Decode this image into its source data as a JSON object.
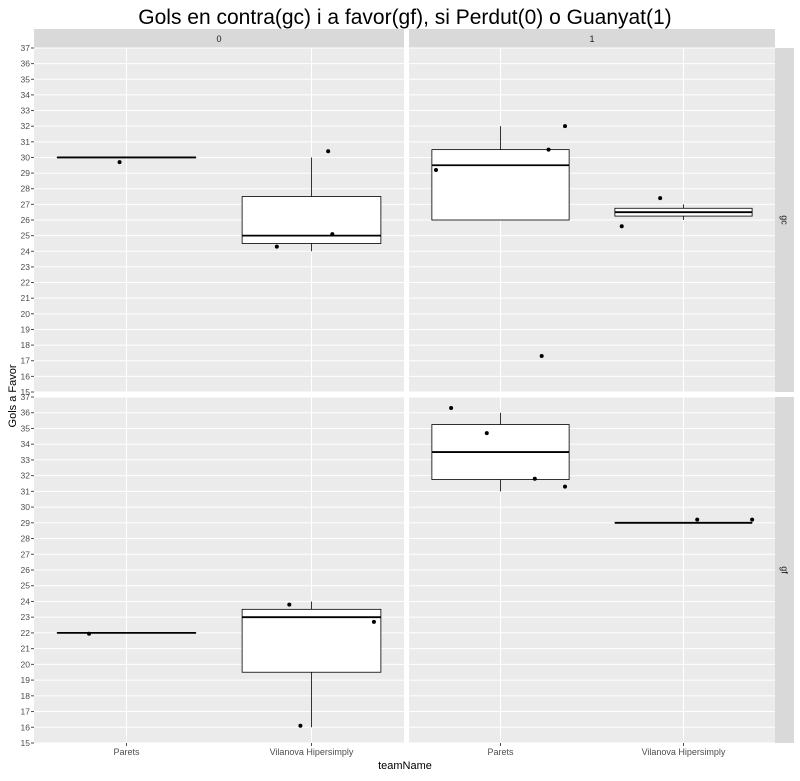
{
  "chart_data": {
    "type": "boxplot",
    "title": "Gols en contra(gc) i a favor(gf), si Perdut(0) o Guanyat(1)",
    "xlabel": "teamName",
    "ylabel": "Gols a Favor",
    "categories": [
      "Parets",
      "Vilanova Hipersimply"
    ],
    "facet_cols": [
      "0",
      "1"
    ],
    "facet_rows": [
      "gc",
      "gf"
    ],
    "panels": [
      {
        "col": "0",
        "row": "gc",
        "ylim": [
          15,
          37
        ],
        "boxes": [
          {
            "category": "Parets",
            "min": 30,
            "q1": 30,
            "median": 30,
            "q3": 30,
            "max": 30
          },
          {
            "category": "Vilanova Hipersimply",
            "min": 24,
            "q1": 24.5,
            "median": 25,
            "q3": 27.5,
            "max": 30
          }
        ],
        "points": [
          {
            "category": "Parets",
            "y": 29.7,
            "jitter": -0.05
          },
          {
            "category": "Vilanova Hipersimply",
            "y": 24.3,
            "jitter": -0.25
          },
          {
            "category": "Vilanova Hipersimply",
            "y": 25.1,
            "jitter": 0.15
          },
          {
            "category": "Vilanova Hipersimply",
            "y": 30.4,
            "jitter": 0.12
          }
        ]
      },
      {
        "col": "1",
        "row": "gc",
        "ylim": [
          15,
          37
        ],
        "boxes": [
          {
            "category": "Parets",
            "min": 26,
            "q1": 26,
            "median": 29.5,
            "q3": 30.5,
            "max": 32
          },
          {
            "category": "Vilanova Hipersimply",
            "min": 26,
            "q1": 26.25,
            "median": 26.5,
            "q3": 26.75,
            "max": 27
          }
        ],
        "points": [
          {
            "category": "Parets",
            "y": 29.2,
            "jitter": -0.47
          },
          {
            "category": "Parets",
            "y": 17.3,
            "jitter": 0.3
          },
          {
            "category": "Parets",
            "y": 30.5,
            "jitter": 0.35
          },
          {
            "category": "Parets",
            "y": 32,
            "jitter": 0.47
          },
          {
            "category": "Vilanova Hipersimply",
            "y": 25.6,
            "jitter": -0.45
          },
          {
            "category": "Vilanova Hipersimply",
            "y": 27.4,
            "jitter": -0.17
          }
        ]
      },
      {
        "col": "0",
        "row": "gf",
        "ylim": [
          15,
          37
        ],
        "boxes": [
          {
            "category": "Parets",
            "min": 22,
            "q1": 22,
            "median": 22,
            "q3": 22,
            "max": 22
          },
          {
            "category": "Vilanova Hipersimply",
            "min": 16,
            "q1": 19.5,
            "median": 23,
            "q3": 23.5,
            "max": 24
          }
        ],
        "points": [
          {
            "category": "Parets",
            "y": 21.95,
            "jitter": -0.27
          },
          {
            "category": "Vilanova Hipersimply",
            "y": 23.8,
            "jitter": -0.16
          },
          {
            "category": "Vilanova Hipersimply",
            "y": 16.1,
            "jitter": -0.08
          },
          {
            "category": "Vilanova Hipersimply",
            "y": 22.7,
            "jitter": 0.45
          }
        ]
      },
      {
        "col": "1",
        "row": "gf",
        "ylim": [
          15,
          37
        ],
        "boxes": [
          {
            "category": "Parets",
            "min": 31,
            "q1": 31.75,
            "median": 33.5,
            "q3": 35.25,
            "max": 36
          },
          {
            "category": "Vilanova Hipersimply",
            "min": 29,
            "q1": 29,
            "median": 29,
            "q3": 29,
            "max": 29
          }
        ],
        "points": [
          {
            "category": "Parets",
            "y": 36.3,
            "jitter": -0.36
          },
          {
            "category": "Parets",
            "y": 34.7,
            "jitter": -0.1
          },
          {
            "category": "Parets",
            "y": 31.8,
            "jitter": 0.25
          },
          {
            "category": "Parets",
            "y": 31.3,
            "jitter": 0.47
          },
          {
            "category": "Vilanova Hipersimply",
            "y": 29.2,
            "jitter": 0.1
          },
          {
            "category": "Vilanova Hipersimply",
            "y": 29.2,
            "jitter": 0.5
          }
        ]
      }
    ],
    "y_ticks": [
      15,
      16,
      17,
      18,
      19,
      20,
      21,
      22,
      23,
      24,
      25,
      26,
      27,
      28,
      29,
      30,
      31,
      32,
      33,
      34,
      35,
      36,
      37
    ],
    "grid": true,
    "colors": {
      "panel_background": "#ebebeb",
      "grid_major": "#ffffff",
      "strip_background": "#d9d9d9",
      "box_fill": "#ffffff",
      "box_line": "#000000",
      "point": "#000000"
    }
  }
}
